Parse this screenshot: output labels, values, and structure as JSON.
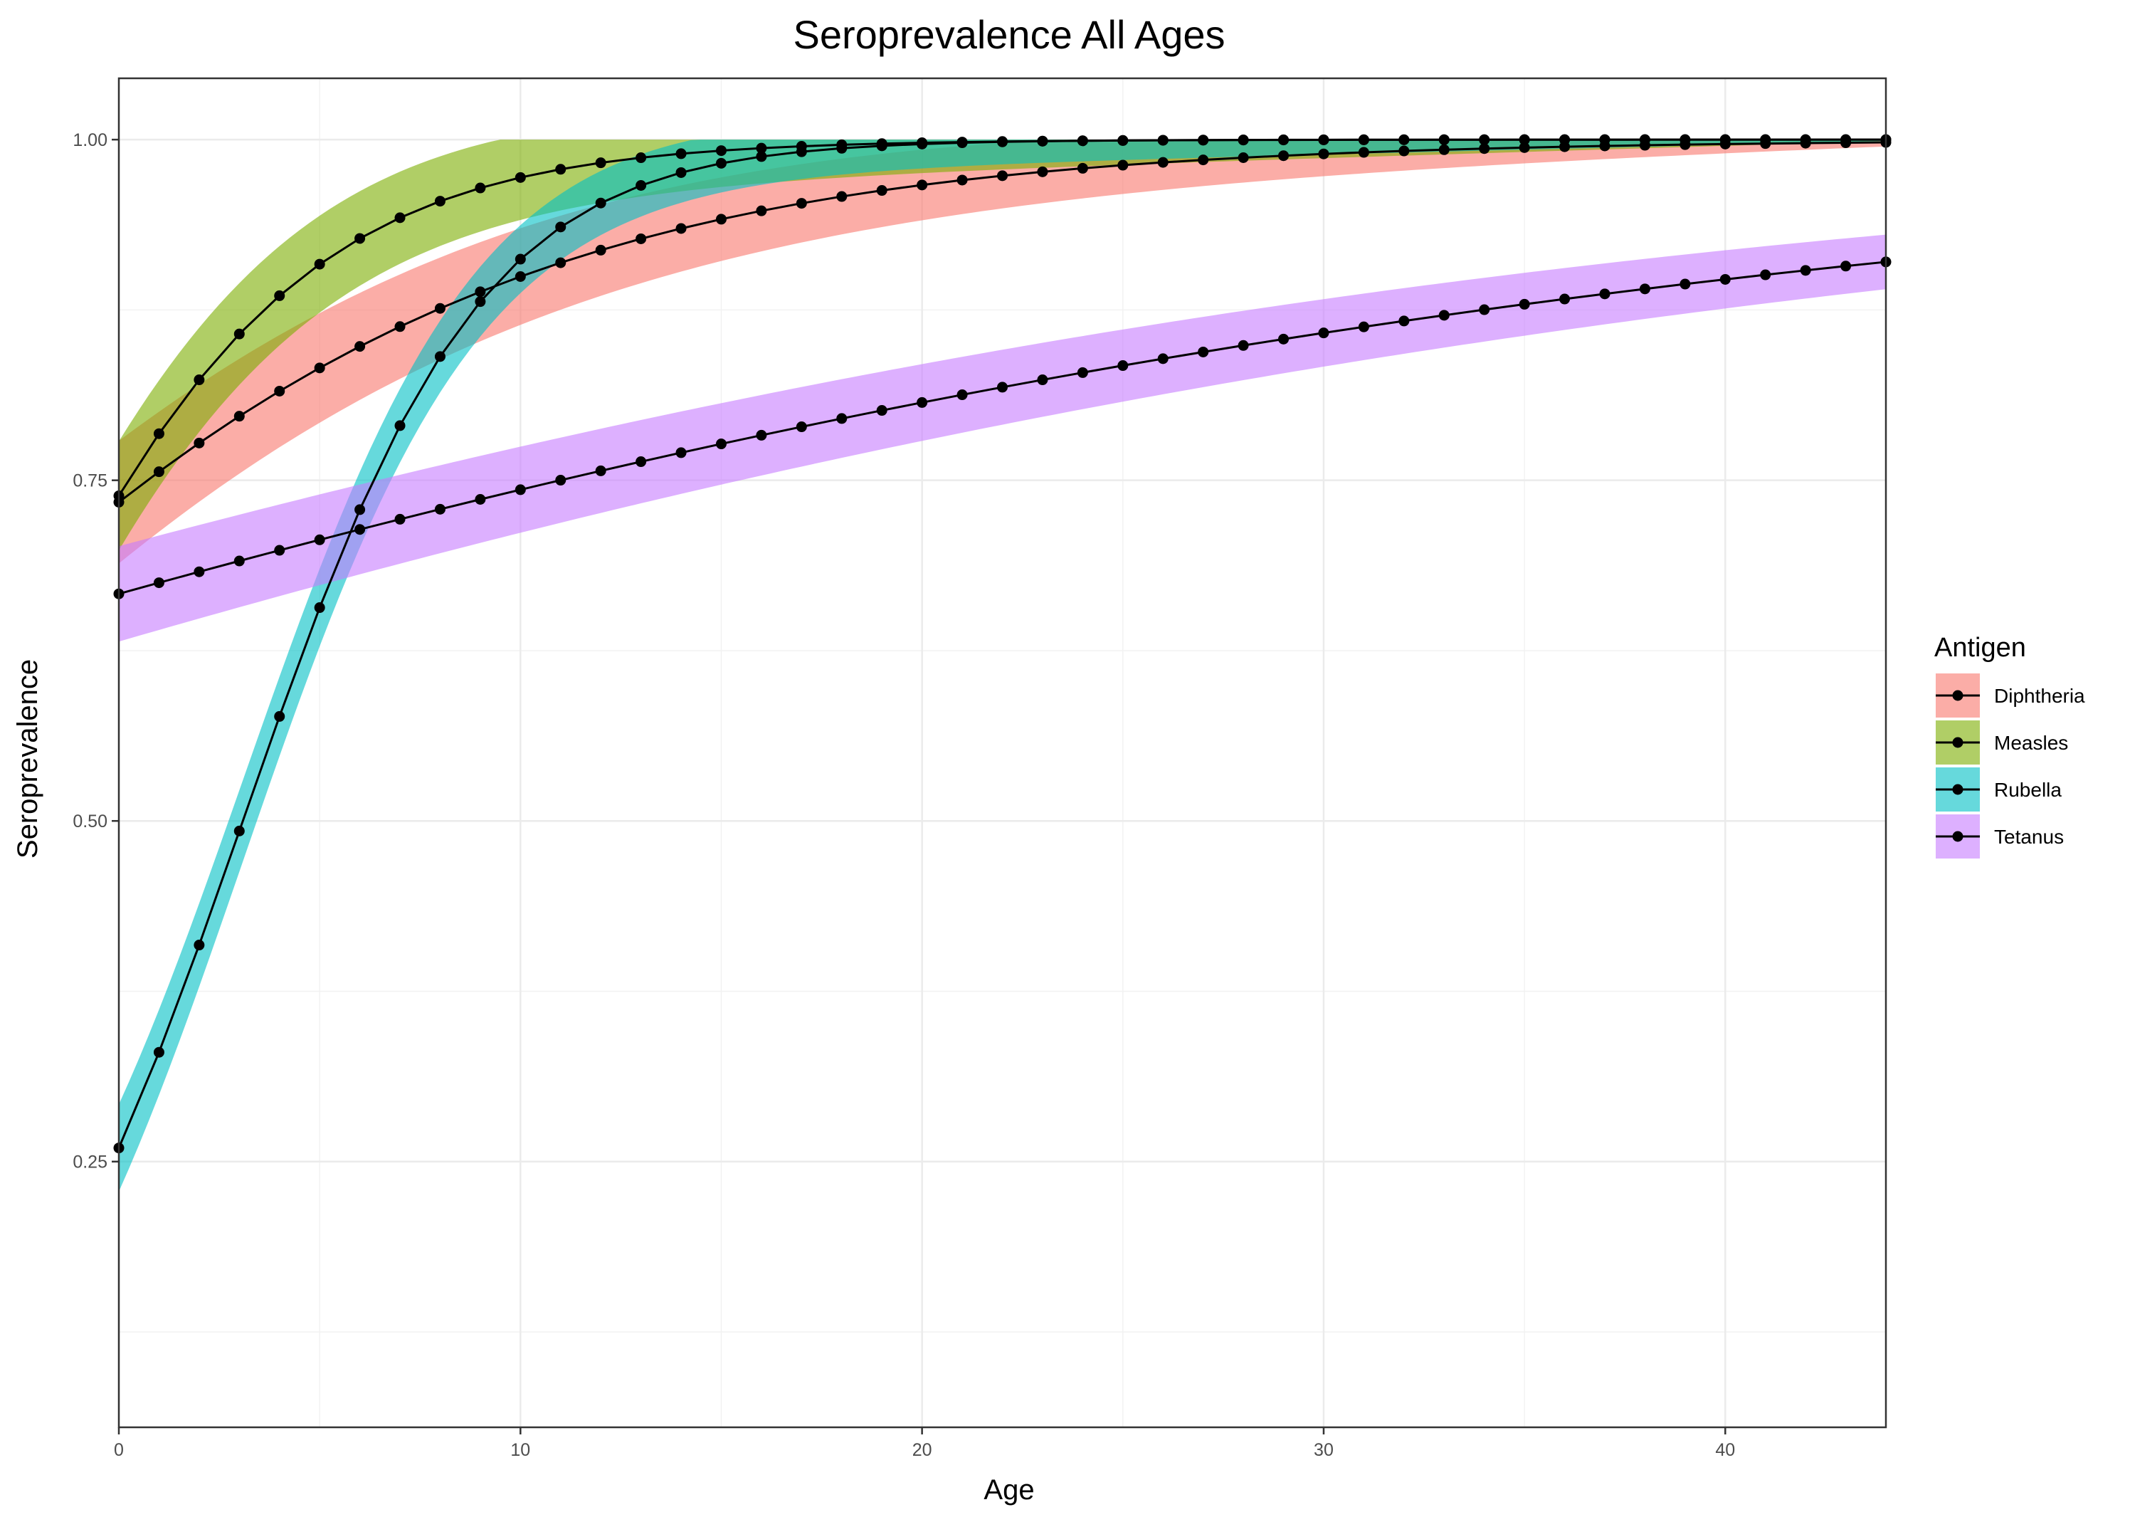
{
  "chart_data": {
    "type": "line",
    "title": "Seroprevalence All Ages",
    "xlabel": "Age",
    "ylabel": "Seroprevalence",
    "xlim": [
      0,
      44
    ],
    "ylim": [
      0.055,
      1.045
    ],
    "x_ticks": [
      0,
      10,
      20,
      30,
      40
    ],
    "x_minor_ticks": [
      5,
      15,
      25,
      35
    ],
    "y_ticks": [
      0.25,
      0.5,
      0.75,
      1.0
    ],
    "y_tick_labels": [
      "0.25",
      "0.50",
      "0.75",
      "1.00"
    ],
    "y_minor_ticks": [
      0.125,
      0.375,
      0.625,
      0.875
    ],
    "grid": true,
    "legend": {
      "title": "Antigen",
      "position": "right"
    },
    "series": [
      {
        "name": "Diphtheria",
        "color": "#F8766D",
        "model": {
          "type": "logistic",
          "intercept": 1.0147,
          "slope": 0.1177
        },
        "band_halfwidth_start": 0.045,
        "band_halfwidth_end": 0.003
      },
      {
        "name": "Measles",
        "color": "#7CAE00",
        "model": {
          "type": "logistic",
          "intercept": 1.0387,
          "slope": 0.2516
        },
        "band_halfwidth_start": 0.04,
        "band_halfwidth_end": 0.001
      },
      {
        "name": "Rubella",
        "color": "#00BFC4",
        "model": {
          "type": "logistic",
          "intercept": -1.046,
          "slope": 0.3388
        },
        "band_halfwidth_start": 0.032,
        "band_halfwidth_end": 0.001
      },
      {
        "name": "Tetanus",
        "color": "#C77CFF",
        "model": {
          "type": "logistic",
          "intercept": 0.6931,
          "slope": 0.0369
        },
        "band_halfwidth_start": 0.035,
        "band_halfwidth_end": 0.02
      }
    ],
    "x_values": [
      0,
      1,
      2,
      3,
      4,
      5,
      6,
      7,
      8,
      9,
      10,
      11,
      12,
      13,
      14,
      15,
      16,
      17,
      18,
      19,
      20,
      21,
      22,
      23,
      24,
      25,
      26,
      27,
      28,
      29,
      30,
      31,
      32,
      33,
      34,
      35,
      36,
      37,
      38,
      39,
      40,
      41,
      42,
      43,
      44
    ]
  }
}
